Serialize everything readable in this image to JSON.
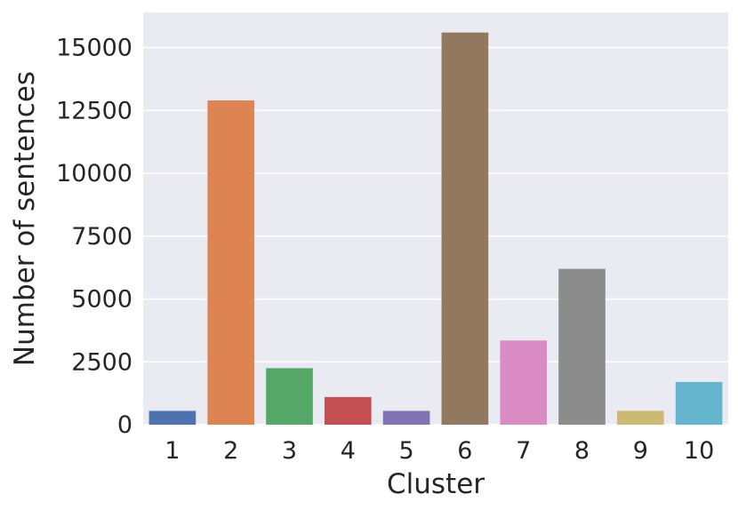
{
  "chart_data": {
    "type": "bar",
    "categories": [
      "1",
      "2",
      "3",
      "4",
      "5",
      "6",
      "7",
      "8",
      "9",
      "10"
    ],
    "values": [
      550,
      12900,
      2250,
      1100,
      550,
      15600,
      3350,
      6200,
      550,
      1700
    ],
    "colors": [
      "#4c72b0",
      "#dd8452",
      "#55a868",
      "#c44e52",
      "#8172b3",
      "#937860",
      "#da8bc3",
      "#8c8c8c",
      "#ccb974",
      "#64b5cd"
    ],
    "xlabel": "Cluster",
    "ylabel": "Number of sentences",
    "ylim": [
      0,
      16400
    ],
    "yticks": [
      0,
      2500,
      5000,
      7500,
      10000,
      12500,
      15000
    ],
    "grid": true,
    "background": "#eaeaf2"
  }
}
